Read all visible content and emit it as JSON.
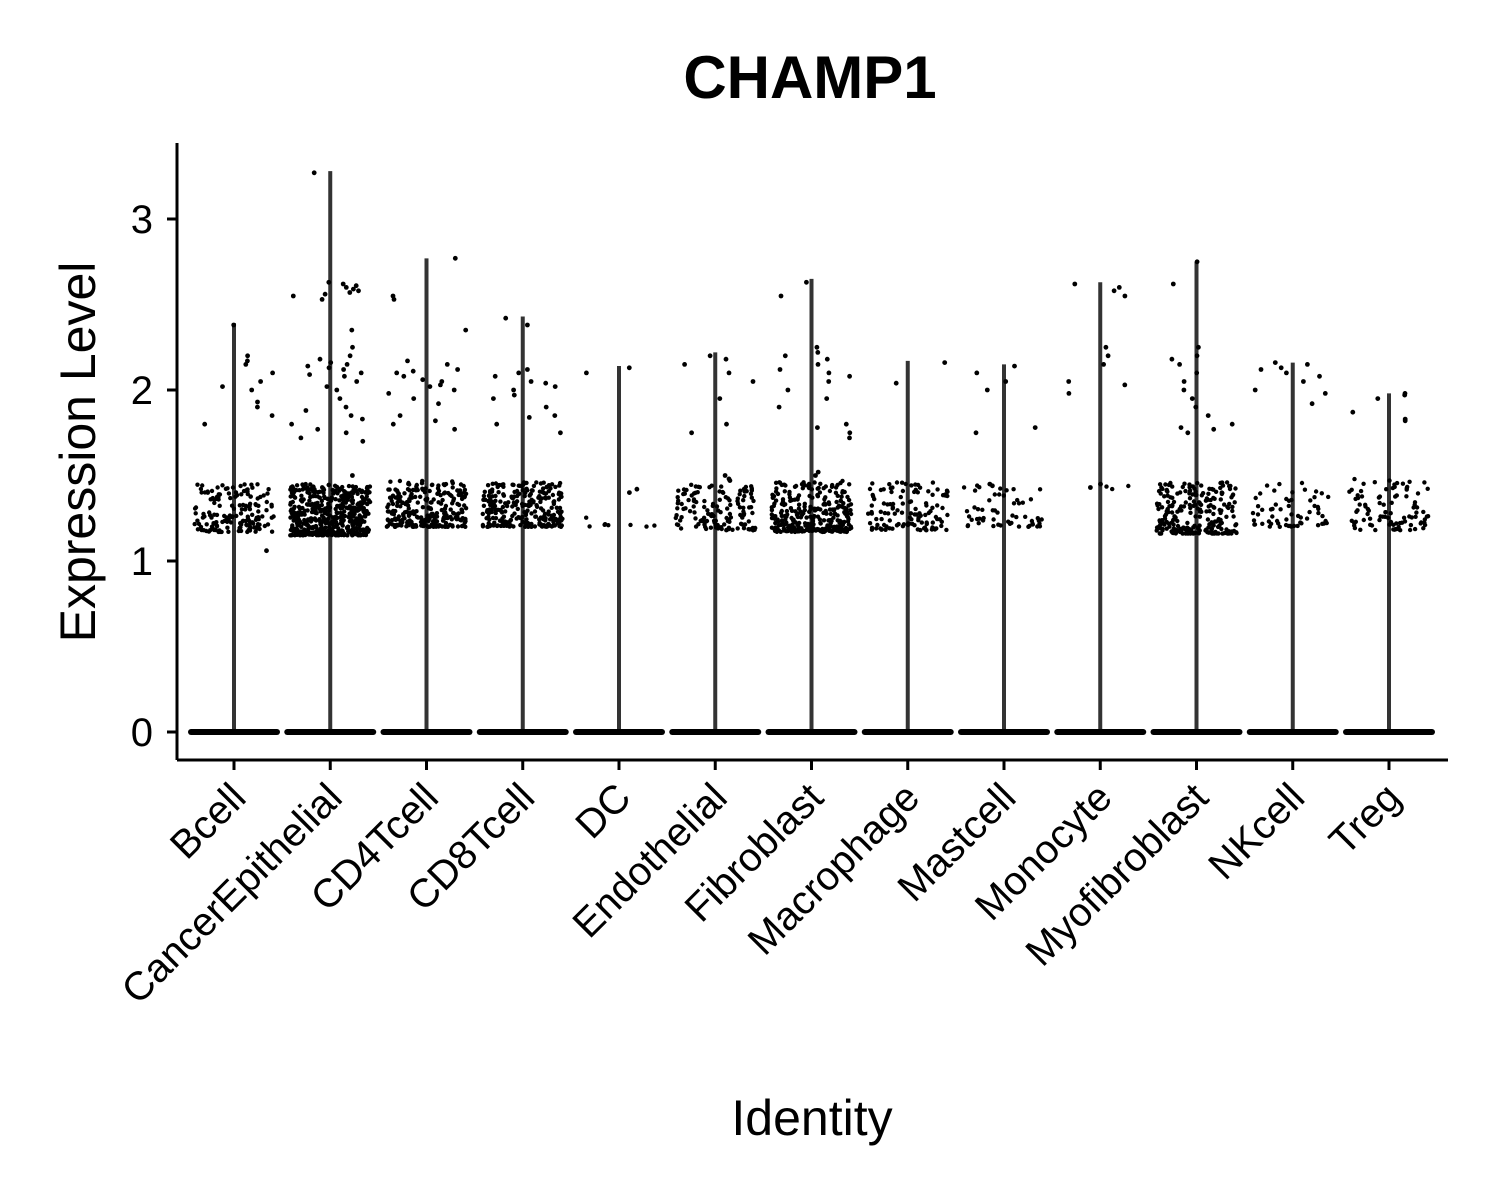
{
  "chart_data": {
    "type": "violin",
    "title": "CHAMP1",
    "xlabel": "Identity",
    "ylabel": "Expression Level",
    "ylim": [
      -0.17,
      3.45
    ],
    "yticks": [
      "0",
      "1",
      "2",
      "3"
    ],
    "categories": [
      "Bcell",
      "CancerEpithelial",
      "CD4Tcell",
      "CD8Tcell",
      "DC",
      "Endothelial",
      "Fibroblast",
      "Macrophage",
      "Mastcell",
      "Monocyte",
      "Myofibroblast",
      "NKcell",
      "Treg"
    ],
    "series": [
      {
        "max": 2.39,
        "band_low": 1.17,
        "band_high": 1.45,
        "band_count": 160,
        "scatter": [
          1.85,
          1.9,
          2.0,
          2.05,
          2.1,
          2.15,
          2.2,
          1.8,
          1.93,
          2.02,
          2.17,
          2.38,
          1.06
        ]
      },
      {
        "max": 3.28,
        "band_low": 1.15,
        "band_high": 1.45,
        "band_count": 520,
        "scatter": [
          2.55,
          2.6,
          2.62,
          2.58,
          2.53,
          2.63,
          2.0,
          2.05,
          2.1,
          2.15,
          2.2,
          2.18,
          2.13,
          1.75,
          1.8,
          1.72,
          1.9,
          1.85,
          1.95,
          2.08,
          2.12,
          2.16,
          2.02,
          1.77,
          1.7,
          2.25,
          2.35,
          1.5,
          3.27,
          2.59,
          2.57,
          2.61,
          2.56,
          2.09,
          2.14,
          1.83,
          1.88
        ]
      },
      {
        "max": 2.77,
        "band_low": 1.2,
        "band_high": 1.47,
        "band_count": 260,
        "scatter": [
          2.0,
          2.05,
          2.1,
          2.15,
          1.95,
          2.02,
          2.08,
          2.12,
          1.8,
          1.77,
          2.35,
          2.53,
          2.55,
          2.77,
          1.85,
          2.17,
          1.98,
          2.03,
          1.92,
          2.06,
          2.11,
          1.82
        ]
      },
      {
        "max": 2.43,
        "band_low": 1.2,
        "band_high": 1.46,
        "band_count": 260,
        "scatter": [
          2.0,
          2.05,
          2.1,
          1.95,
          2.02,
          2.08,
          1.85,
          1.8,
          2.38,
          2.42,
          1.75,
          2.12,
          1.97,
          2.04,
          1.9,
          1.84
        ]
      },
      {
        "max": 2.14,
        "band_low": 1.2,
        "band_high": 1.3,
        "band_count": 8,
        "scatter": [
          2.13,
          2.1,
          1.42,
          1.4
        ]
      },
      {
        "max": 2.22,
        "band_low": 1.18,
        "band_high": 1.45,
        "band_count": 140,
        "scatter": [
          2.2,
          2.15,
          2.1,
          2.05,
          1.95,
          1.8,
          1.75,
          2.18,
          1.5,
          1.48,
          1.47
        ]
      },
      {
        "max": 2.65,
        "band_low": 1.17,
        "band_high": 1.47,
        "band_count": 300,
        "scatter": [
          2.55,
          2.63,
          2.0,
          2.05,
          2.1,
          2.15,
          2.2,
          2.25,
          1.75,
          1.8,
          1.95,
          1.78,
          2.12,
          2.18,
          2.08,
          1.9,
          1.72,
          2.22,
          1.52,
          1.5
        ]
      },
      {
        "max": 2.17,
        "band_low": 1.18,
        "band_high": 1.46,
        "band_count": 120,
        "scatter": [
          2.16,
          2.04
        ]
      },
      {
        "max": 2.15,
        "band_low": 1.2,
        "band_high": 1.45,
        "band_count": 55,
        "scatter": [
          2.14,
          2.1,
          2.05,
          2.0,
          1.78,
          1.75,
          1.45,
          1.44
        ]
      },
      {
        "max": 2.63,
        "band_low": 1.42,
        "band_high": 1.45,
        "band_count": 3,
        "scatter": [
          2.62,
          2.6,
          2.58,
          2.55,
          2.25,
          2.2,
          2.05,
          2.03,
          2.15,
          1.98,
          1.45,
          1.43
        ]
      },
      {
        "max": 2.75,
        "band_low": 1.16,
        "band_high": 1.46,
        "band_count": 240,
        "scatter": [
          2.75,
          2.62,
          2.25,
          2.2,
          2.15,
          2.1,
          2.05,
          2.0,
          1.95,
          1.9,
          1.85,
          1.8,
          1.78,
          1.75,
          1.77,
          2.18
        ]
      },
      {
        "max": 2.16,
        "band_low": 1.2,
        "band_high": 1.47,
        "band_count": 60,
        "scatter": [
          2.16,
          2.13,
          2.1,
          2.08,
          2.05,
          2.0,
          1.98,
          1.92,
          2.15,
          2.12
        ]
      },
      {
        "max": 1.98,
        "band_low": 1.18,
        "band_high": 1.48,
        "band_count": 95,
        "scatter": [
          1.98,
          1.95,
          1.87,
          1.83,
          1.82,
          1.97
        ]
      }
    ]
  }
}
